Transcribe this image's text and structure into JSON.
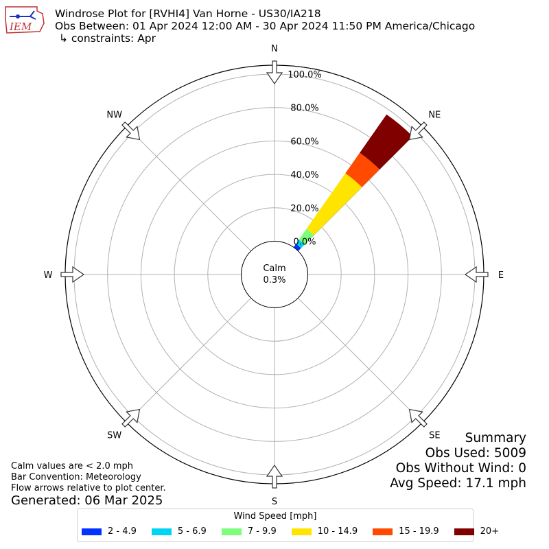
{
  "header": {
    "title": "Windrose Plot for [RVHI4] Van Horne - US30/IA218",
    "obs_between": "Obs Between: 01 Apr 2024 12:00 AM - 30 Apr 2024 11:50 PM America/Chicago",
    "constraints": "↳ constraints: Apr",
    "logo_text": "IEM"
  },
  "notes": {
    "calm_note": "Calm values are < 2.0 mph",
    "bar_convention": "Bar Convention: Meteorology",
    "flow_arrows": "Flow arrows relative to plot center.",
    "generated": "Generated: 06 Mar 2025"
  },
  "summary": {
    "title": "Summary",
    "obs_used": "Obs Used: 5009",
    "obs_without_wind": "Obs Without Wind: 0",
    "avg_speed": "Avg Speed: 17.1 mph"
  },
  "legend": {
    "title": "Wind Speed [mph]",
    "items": [
      {
        "label": "2 - 4.9",
        "color": "#0033ff"
      },
      {
        "label": "5 - 6.9",
        "color": "#00d4f0"
      },
      {
        "label": "7 - 9.9",
        "color": "#7dfe7a"
      },
      {
        "label": "10 - 14.9",
        "color": "#ffe400"
      },
      {
        "label": "15 - 19.9",
        "color": "#ff4a00"
      },
      {
        "label": "20+",
        "color": "#800000"
      }
    ]
  },
  "chart_data": {
    "type": "windrose",
    "calm_label": "Calm",
    "calm_value": "0.3%",
    "directions": [
      "N",
      "NE",
      "E",
      "SE",
      "S",
      "SW",
      "W",
      "NW"
    ],
    "radial_ticks": [
      "0.0%",
      "20.0%",
      "40.0%",
      "60.0%",
      "80.0%",
      "100.0%"
    ],
    "rmax": 100,
    "grid": true,
    "bar_direction_deg": 40,
    "bar_width_deg": 10,
    "cumulative_percent": [
      2.5,
      5.5,
      13.5,
      54.0,
      69.0,
      97.0
    ],
    "speed_bins": [
      "2 - 4.9",
      "5 - 6.9",
      "7 - 9.9",
      "10 - 14.9",
      "15 - 19.9",
      "20+"
    ]
  }
}
